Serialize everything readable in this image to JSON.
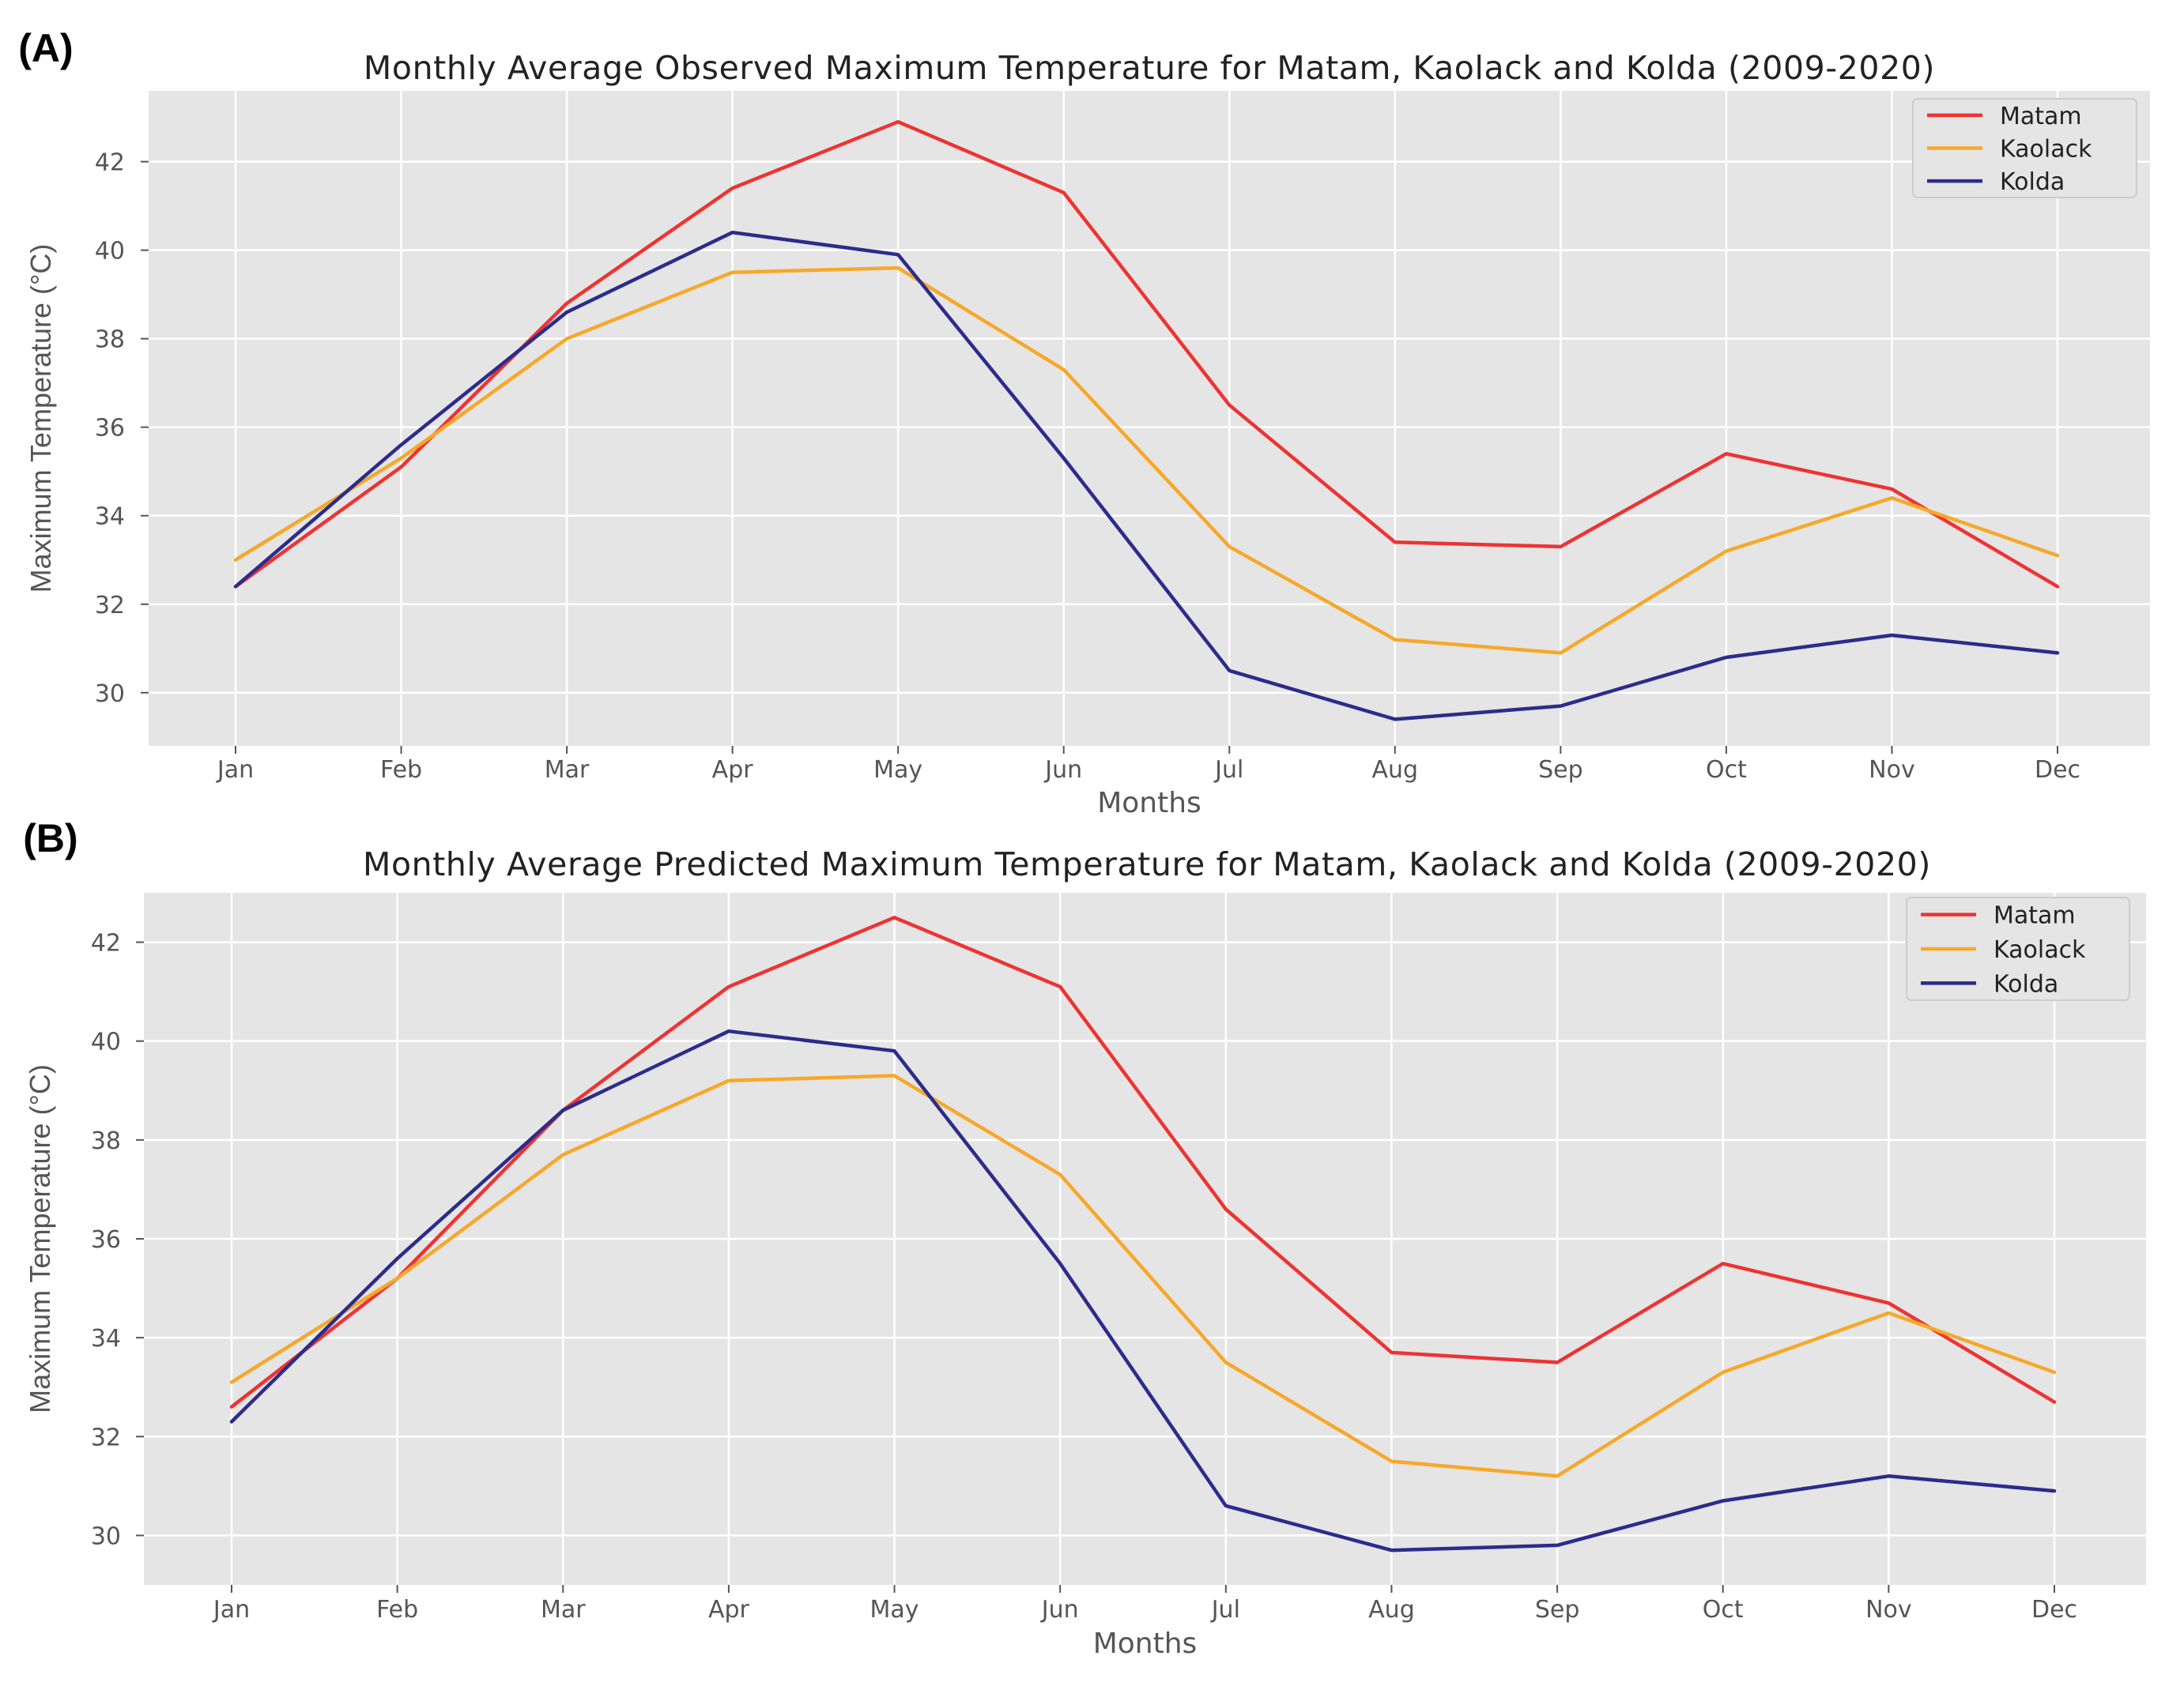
{
  "chart_data": [
    {
      "panel_label": "(A)",
      "type": "line",
      "title": "Monthly Average Observed Maximum Temperature for Matam, Kaolack and Kolda (2009-2020)",
      "xlabel": "Months",
      "ylabel": "Maximum Temperature (°C)",
      "categories": [
        "Jan",
        "Feb",
        "Mar",
        "Apr",
        "May",
        "Jun",
        "Jul",
        "Aug",
        "Sep",
        "Oct",
        "Nov",
        "Dec"
      ],
      "yticks": [
        30,
        32,
        34,
        36,
        38,
        40,
        42
      ],
      "ylim": [
        28.8,
        43.6
      ],
      "grid": true,
      "legend": "top-right",
      "series": [
        {
          "name": "Matam",
          "color": "#ee3333",
          "values": [
            32.4,
            35.1,
            38.8,
            41.4,
            42.9,
            41.3,
            36.5,
            33.4,
            33.3,
            35.4,
            34.6,
            32.4
          ]
        },
        {
          "name": "Kaolack",
          "color": "#f7a829",
          "values": [
            33.0,
            35.3,
            38.0,
            39.5,
            39.6,
            37.3,
            33.3,
            31.2,
            30.9,
            33.2,
            34.4,
            33.1
          ]
        },
        {
          "name": "Kolda",
          "color": "#2b2c8c",
          "values": [
            32.4,
            35.6,
            38.6,
            40.4,
            39.9,
            35.3,
            30.5,
            29.4,
            29.7,
            30.8,
            31.3,
            30.9
          ]
        }
      ]
    },
    {
      "panel_label": "(B)",
      "type": "line",
      "title": "Monthly Average Predicted Maximum Temperature for Matam, Kaolack and Kolda (2009-2020)",
      "xlabel": "Months",
      "ylabel": "Maximum Temperature (°C)",
      "categories": [
        "Jan",
        "Feb",
        "Mar",
        "Apr",
        "May",
        "Jun",
        "Jul",
        "Aug",
        "Sep",
        "Oct",
        "Nov",
        "Dec"
      ],
      "yticks": [
        30,
        32,
        34,
        36,
        38,
        40,
        42
      ],
      "ylim": [
        29.0,
        43.0
      ],
      "grid": true,
      "legend": "top-right",
      "series": [
        {
          "name": "Matam",
          "color": "#ee3333",
          "values": [
            32.6,
            35.2,
            38.6,
            41.1,
            42.5,
            41.1,
            36.6,
            33.7,
            33.5,
            35.5,
            34.7,
            32.7
          ]
        },
        {
          "name": "Kaolack",
          "color": "#f7a829",
          "values": [
            33.1,
            35.2,
            37.7,
            39.2,
            39.3,
            37.3,
            33.5,
            31.5,
            31.2,
            33.3,
            34.5,
            33.3
          ]
        },
        {
          "name": "Kolda",
          "color": "#2b2c8c",
          "values": [
            32.3,
            35.6,
            38.6,
            40.2,
            39.8,
            35.5,
            30.6,
            29.7,
            29.8,
            30.7,
            31.2,
            30.9
          ]
        }
      ]
    }
  ]
}
